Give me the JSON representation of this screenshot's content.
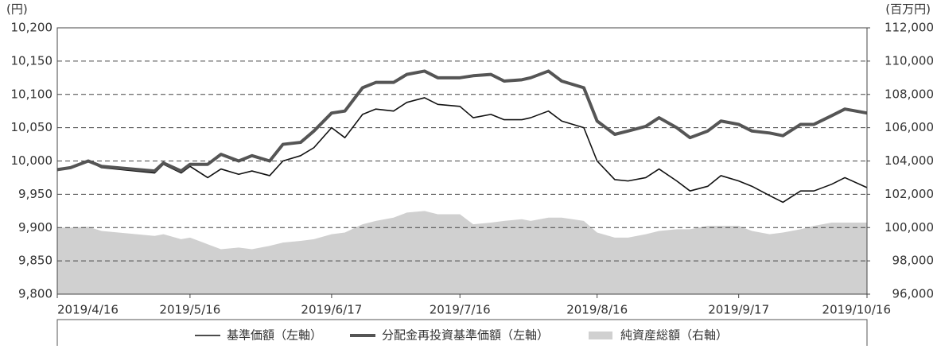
{
  "chart_data": {
    "type": "line",
    "y_unit_label": "(円)",
    "y2_unit_label": "(百万円)",
    "x": [
      "2019/4/16",
      "2019/4/19",
      "2019/4/23",
      "2019/4/26",
      "2019/5/8",
      "2019/5/10",
      "2019/5/14",
      "2019/5/16",
      "2019/5/20",
      "2019/5/23",
      "2019/5/27",
      "2019/5/30",
      "2019/6/3",
      "2019/6/6",
      "2019/6/10",
      "2019/6/13",
      "2019/6/17",
      "2019/6/20",
      "2019/6/24",
      "2019/6/27",
      "2019/7/1",
      "2019/7/4",
      "2019/7/8",
      "2019/7/11",
      "2019/7/16",
      "2019/7/19",
      "2019/7/23",
      "2019/7/26",
      "2019/7/30",
      "2019/8/1",
      "2019/8/5",
      "2019/8/8",
      "2019/8/13",
      "2019/8/16",
      "2019/8/20",
      "2019/8/23",
      "2019/8/27",
      "2019/8/30",
      "2019/9/3",
      "2019/9/6",
      "2019/9/10",
      "2019/9/13",
      "2019/9/17",
      "2019/9/20",
      "2019/9/24",
      "2019/9/27",
      "2019/10/1",
      "2019/10/4",
      "2019/10/8",
      "2019/10/11",
      "2019/10/16"
    ],
    "xticks": [
      "2019/4/16",
      "2019/5/16",
      "2019/6/17",
      "2019/7/16",
      "2019/8/16",
      "2019/9/17",
      "2019/10/16"
    ],
    "xlim": [
      "2019/4/16",
      "2019/10/16"
    ],
    "ylim": [
      9800,
      10200
    ],
    "yticks": [
      {
        "value": 9800,
        "label": "9,800"
      },
      {
        "value": 9850,
        "label": "9,850"
      },
      {
        "value": 9900,
        "label": "9,900"
      },
      {
        "value": 9950,
        "label": "9,950"
      },
      {
        "value": 10000,
        "label": "10,000"
      },
      {
        "value": 10050,
        "label": "10,050"
      },
      {
        "value": 10100,
        "label": "10,100"
      },
      {
        "value": 10150,
        "label": "10,150"
      },
      {
        "value": 10200,
        "label": "10,200"
      }
    ],
    "y2lim": [
      96000,
      112000
    ],
    "y2ticks": [
      {
        "value": 96000,
        "label": "96,000"
      },
      {
        "value": 98000,
        "label": "98,000"
      },
      {
        "value": 100000,
        "label": "100,000"
      },
      {
        "value": 102000,
        "label": "102,000"
      },
      {
        "value": 104000,
        "label": "104,000"
      },
      {
        "value": 106000,
        "label": "106,000"
      },
      {
        "value": 108000,
        "label": "108,000"
      },
      {
        "value": 110000,
        "label": "110,000"
      },
      {
        "value": 112000,
        "label": "112,000"
      }
    ],
    "grid": true,
    "legend": "bottom",
    "series": [
      {
        "name": "純資産総額（右軸）",
        "kind": "area",
        "axis": "y2",
        "color": "#d0d0d0",
        "values": [
          100000,
          100000,
          100050,
          99800,
          99500,
          99600,
          99300,
          99400,
          99000,
          98700,
          98800,
          98700,
          98900,
          99100,
          99200,
          99300,
          99600,
          99700,
          100200,
          100400,
          100600,
          100900,
          101000,
          100800,
          100800,
          100200,
          100300,
          100400,
          100500,
          100400,
          100600,
          100600,
          100400,
          99700,
          99400,
          99400,
          99600,
          99800,
          99900,
          99900,
          100100,
          100100,
          100100,
          99800,
          99600,
          99700,
          99900,
          100100,
          100300,
          100300,
          100300
        ]
      },
      {
        "name": "基準価額（左軸）",
        "kind": "line",
        "color": "#111111",
        "width": 1.6,
        "values": [
          9987,
          9990,
          10000,
          9990,
          9982,
          9995,
          9982,
          9992,
          9975,
          9988,
          9980,
          9985,
          9978,
          10000,
          10008,
          10020,
          10050,
          10035,
          10070,
          10078,
          10075,
          10088,
          10095,
          10085,
          10082,
          10065,
          10070,
          10062,
          10062,
          10065,
          10075,
          10060,
          10050,
          10000,
          9972,
          9970,
          9975,
          9988,
          9970,
          9955,
          9962,
          9978,
          9970,
          9962,
          9948,
          9938,
          9955,
          9955,
          9965,
          9975,
          9960
        ]
      },
      {
        "name": "分配金再投資基準価額（左軸）",
        "kind": "line",
        "color": "#555555",
        "width": 4,
        "values": [
          9987,
          9990,
          10000,
          9992,
          9985,
          9997,
          9985,
          9995,
          9995,
          10010,
          10000,
          10008,
          10000,
          10025,
          10028,
          10045,
          10072,
          10075,
          10110,
          10118,
          10118,
          10130,
          10135,
          10125,
          10125,
          10128,
          10130,
          10120,
          10122,
          10125,
          10135,
          10120,
          10110,
          10060,
          10040,
          10045,
          10052,
          10065,
          10050,
          10035,
          10045,
          10060,
          10055,
          10045,
          10042,
          10038,
          10055,
          10055,
          10068,
          10078,
          10072
        ]
      }
    ]
  }
}
